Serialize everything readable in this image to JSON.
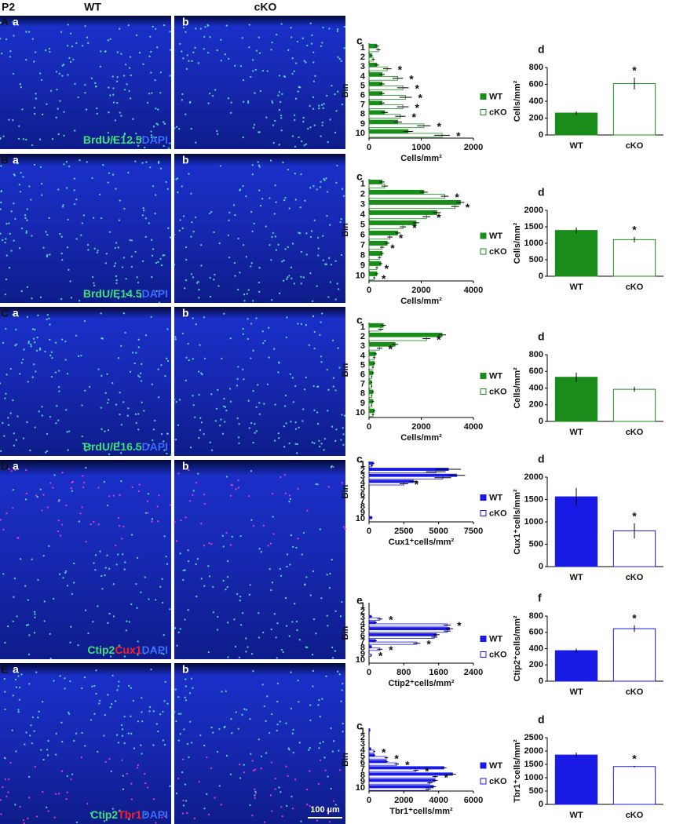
{
  "figure": {
    "stage": "P2",
    "columns": [
      "WT",
      "cKO"
    ],
    "scale_bar": "100 µm"
  },
  "rows": [
    {
      "label": "A",
      "images": [
        "a",
        "b"
      ],
      "stain": [
        {
          "text": "BrdU/E12.5",
          "color": "#3fe07a"
        },
        {
          "text": "DAPI",
          "color": "#3b6cff"
        }
      ]
    },
    {
      "label": "B",
      "images": [
        "a",
        "b"
      ],
      "stain": [
        {
          "text": "BrdU/E14.5",
          "color": "#3fe07a"
        },
        {
          "text": "DAPI",
          "color": "#3b6cff"
        }
      ]
    },
    {
      "label": "C",
      "images": [
        "a",
        "b"
      ],
      "stain": [
        {
          "text": "BrdU/E16.5",
          "color": "#3fe07a"
        },
        {
          "text": "DAPI",
          "color": "#3b6cff"
        }
      ]
    },
    {
      "label": "D",
      "images": [
        "a",
        "b"
      ],
      "stain": [
        {
          "text": "Ctip2",
          "color": "#3fe07a"
        },
        {
          "text": "Cux1",
          "color": "#ff2020"
        },
        {
          "text": "DAPI",
          "color": "#3b6cff"
        }
      ]
    },
    {
      "label": "E",
      "images": [
        "a",
        "b"
      ],
      "stain": [
        {
          "text": "Ctip2",
          "color": "#3fe07a"
        },
        {
          "text": "Tbr1",
          "color": "#ff2020"
        },
        {
          "text": "DAPI",
          "color": "#3b6cff"
        }
      ]
    }
  ],
  "chart_data": [
    {
      "type": "hbar",
      "panel": "c",
      "ylabel": "Bin",
      "xlabel": "Cells/mm²",
      "asterisk": "*",
      "categories": [
        "1",
        "2",
        "3",
        "4",
        "5",
        "6",
        "7",
        "8",
        "9",
        "10"
      ],
      "xlim": [
        0,
        2000
      ],
      "xticks": [
        0,
        1000,
        2000
      ],
      "series": [
        {
          "name": "WT",
          "color": "#1a8c1a",
          "filled": true,
          "values": [
            150,
            50,
            150,
            250,
            250,
            250,
            250,
            300,
            550,
            750
          ],
          "errors": [
            40,
            20,
            40,
            50,
            50,
            50,
            50,
            60,
            80,
            90
          ]
        },
        {
          "name": "cKO",
          "color": "#1a8c1a",
          "filled": false,
          "values": [
            180,
            80,
            350,
            550,
            650,
            700,
            650,
            600,
            1050,
            1400
          ],
          "errors": [
            40,
            30,
            80,
            100,
            110,
            120,
            110,
            100,
            130,
            150
          ],
          "significant": [
            false,
            false,
            true,
            true,
            true,
            true,
            true,
            true,
            true,
            true
          ]
        }
      ]
    },
    {
      "type": "bar",
      "panel": "d",
      "ylabel": "Cells/mm²",
      "asterisk": "*",
      "categories": [
        "WT",
        "cKO"
      ],
      "values": [
        260,
        610
      ],
      "errors": [
        20,
        70
      ],
      "color": "#1a8c1a",
      "filled": [
        true,
        false
      ],
      "significant": [
        false,
        true
      ],
      "ylim": [
        0,
        800
      ],
      "yticks": [
        0,
        200,
        400,
        600,
        800
      ]
    },
    {
      "type": "hbar",
      "panel": "c",
      "ylabel": "Bin",
      "xlabel": "Cells/mm²",
      "asterisk": "*",
      "categories": [
        "1",
        "2",
        "3",
        "4",
        "5",
        "6",
        "7",
        "8",
        "9",
        "10"
      ],
      "xlim": [
        0,
        4000
      ],
      "xticks": [
        0,
        2000,
        4000
      ],
      "series": [
        {
          "name": "WT",
          "color": "#1a8c1a",
          "filled": true,
          "values": [
            500,
            2100,
            3500,
            2600,
            1800,
            1100,
            700,
            500,
            450,
            300
          ],
          "errors": [
            100,
            150,
            150,
            150,
            120,
            100,
            80,
            60,
            60,
            50
          ]
        },
        {
          "name": "cKO",
          "color": "#1a8c1a",
          "filled": false,
          "values": [
            600,
            2900,
            3300,
            2200,
            1300,
            800,
            500,
            400,
            300,
            200
          ],
          "errors": [
            120,
            150,
            150,
            150,
            120,
            100,
            80,
            60,
            50,
            40
          ],
          "significant": [
            false,
            true,
            true,
            true,
            true,
            true,
            true,
            false,
            true,
            true
          ]
        }
      ]
    },
    {
      "type": "bar",
      "panel": "d",
      "ylabel": "Cells/mm²",
      "asterisk": "*",
      "categories": [
        "WT",
        "cKO"
      ],
      "values": [
        1390,
        1110
      ],
      "errors": [
        90,
        80
      ],
      "color": "#1a8c1a",
      "filled": [
        true,
        false
      ],
      "significant": [
        false,
        true
      ],
      "ylim": [
        0,
        2000
      ],
      "yticks": [
        0,
        500,
        1000,
        1500,
        2000
      ]
    },
    {
      "type": "hbar",
      "panel": "c",
      "ylabel": "Bin",
      "xlabel": "Cells/mm²",
      "asterisk": "*",
      "categories": [
        "1",
        "2",
        "3",
        "4",
        "5",
        "6",
        "7",
        "8",
        "9",
        "10"
      ],
      "xlim": [
        0,
        4000
      ],
      "xticks": [
        0,
        2000,
        4000
      ],
      "series": [
        {
          "name": "WT",
          "color": "#1a8c1a",
          "filled": true,
          "values": [
            550,
            2800,
            1000,
            250,
            200,
            150,
            100,
            150,
            150,
            200
          ],
          "errors": [
            100,
            150,
            120,
            50,
            40,
            40,
            30,
            40,
            40,
            40
          ]
        },
        {
          "name": "cKO",
          "color": "#1a8c1a",
          "filled": false,
          "values": [
            450,
            2200,
            400,
            200,
            150,
            100,
            100,
            100,
            100,
            150
          ],
          "errors": [
            100,
            150,
            100,
            50,
            40,
            30,
            30,
            30,
            30,
            40
          ],
          "significant": [
            false,
            true,
            true,
            false,
            false,
            false,
            false,
            false,
            false,
            false
          ]
        }
      ]
    },
    {
      "type": "bar",
      "panel": "d",
      "ylabel": "Cells/mm²",
      "asterisk": "*",
      "categories": [
        "WT",
        "cKO"
      ],
      "values": [
        530,
        385
      ],
      "errors": [
        55,
        30
      ],
      "color": "#1a8c1a",
      "filled": [
        true,
        false
      ],
      "significant": [
        false,
        false
      ],
      "ylim": [
        0,
        800
      ],
      "yticks": [
        0,
        200,
        400,
        600,
        800
      ]
    },
    {
      "type": "hbar",
      "panel": "c",
      "ylabel": "Bin",
      "xlabel": "Cux1⁺cells/mm²",
      "asterisk": "*",
      "categories": [
        "1",
        "2",
        "3",
        "4",
        "5",
        "6",
        "7",
        "8",
        "9",
        "10"
      ],
      "xlim": [
        0,
        7500
      ],
      "xticks": [
        0,
        2500,
        5000,
        7500
      ],
      "series": [
        {
          "name": "WT",
          "color": "#1a1ae6",
          "filled": true,
          "values": [
            300,
            5700,
            6300,
            3200,
            0,
            0,
            0,
            0,
            0,
            200
          ],
          "errors": [
            100,
            900,
            600,
            300,
            0,
            0,
            0,
            0,
            0,
            50
          ]
        },
        {
          "name": "cKO",
          "color": "#1a1ae6",
          "filled": false,
          "values": [
            200,
            4800,
            5300,
            2500,
            0,
            0,
            0,
            0,
            0,
            0
          ],
          "errors": [
            80,
            700,
            600,
            300,
            0,
            0,
            0,
            0,
            0,
            0
          ],
          "significant": [
            false,
            false,
            false,
            true,
            false,
            false,
            false,
            false,
            false,
            false
          ]
        }
      ]
    },
    {
      "type": "bar",
      "panel": "d",
      "ylabel": "Cux1⁺cells/mm²",
      "asterisk": "*",
      "categories": [
        "WT",
        "cKO"
      ],
      "values": [
        1560,
        800
      ],
      "errors": [
        200,
        170
      ],
      "color": "#1a1ae6",
      "filled": [
        true,
        false
      ],
      "significant": [
        false,
        true
      ],
      "ylim": [
        0,
        2000
      ],
      "yticks": [
        0,
        500,
        1000,
        1500,
        2000
      ]
    },
    {
      "type": "hbar",
      "panel": "e",
      "ylabel": "Bin",
      "xlabel": "Ctip2⁺cells/mm²",
      "asterisk": "*",
      "categories": [
        "1",
        "2",
        "3",
        "4",
        "5",
        "6",
        "7",
        "8",
        "9",
        "10"
      ],
      "xlim": [
        0,
        2400
      ],
      "xticks": [
        0,
        800,
        1600,
        2400
      ],
      "series": [
        {
          "name": "WT",
          "color": "#1a1ae6",
          "filled": true,
          "values": [
            0,
            0,
            50,
            150,
            1850,
            1550,
            150,
            50,
            0,
            0
          ],
          "errors": [
            0,
            0,
            20,
            30,
            80,
            70,
            30,
            20,
            0,
            0
          ]
        },
        {
          "name": "cKO",
          "color": "#1a1ae6",
          "filled": false,
          "values": [
            0,
            0,
            250,
            1800,
            1800,
            1500,
            1100,
            250,
            50,
            0
          ],
          "errors": [
            0,
            0,
            60,
            80,
            80,
            70,
            80,
            60,
            20,
            0
          ],
          "significant": [
            false,
            false,
            true,
            true,
            false,
            false,
            true,
            true,
            true,
            false
          ]
        }
      ]
    },
    {
      "type": "bar",
      "panel": "f",
      "ylabel": "Ctip2⁺cells/mm²",
      "asterisk": "*",
      "categories": [
        "WT",
        "cKO"
      ],
      "values": [
        375,
        645
      ],
      "errors": [
        25,
        40
      ],
      "color": "#1a1ae6",
      "filled": [
        true,
        false
      ],
      "significant": [
        false,
        true
      ],
      "ylim": [
        0,
        800
      ],
      "yticks": [
        0,
        200,
        400,
        600,
        800
      ]
    },
    {
      "type": "hbar",
      "panel": "c",
      "ylabel": "Bin",
      "xlabel": "Tbr1⁺cells/mm²",
      "asterisk": "*",
      "categories": [
        "1",
        "2",
        "3",
        "4",
        "5",
        "6",
        "7",
        "8",
        "9",
        "10"
      ],
      "xlim": [
        0,
        6000
      ],
      "xticks": [
        0,
        2000,
        4000,
        6000
      ],
      "series": [
        {
          "name": "WT",
          "color": "#1a1ae6",
          "filled": true,
          "values": [
            50,
            0,
            0,
            100,
            300,
            1000,
            4300,
            4800,
            3800,
            3700
          ],
          "errors": [
            20,
            0,
            0,
            30,
            60,
            100,
            150,
            200,
            150,
            150
          ]
        },
        {
          "name": "cKO",
          "color": "#1a1ae6",
          "filled": false,
          "values": [
            0,
            0,
            0,
            300,
            1000,
            1600,
            2700,
            3800,
            3500,
            3400
          ],
          "errors": [
            0,
            0,
            0,
            60,
            100,
            120,
            150,
            150,
            150,
            150
          ],
          "significant": [
            false,
            false,
            false,
            true,
            true,
            true,
            true,
            true,
            false,
            false
          ]
        }
      ]
    },
    {
      "type": "bar",
      "panel": "d",
      "ylabel": "Tbr1⁺cells/mm²",
      "asterisk": "*",
      "categories": [
        "WT",
        "cKO"
      ],
      "values": [
        1850,
        1420
      ],
      "errors": [
        90,
        30
      ],
      "color": "#1a1ae6",
      "filled": [
        true,
        false
      ],
      "significant": [
        false,
        true
      ],
      "ylim": [
        0,
        2500
      ],
      "yticks": [
        0,
        500,
        1000,
        1500,
        2000,
        2500
      ]
    }
  ]
}
